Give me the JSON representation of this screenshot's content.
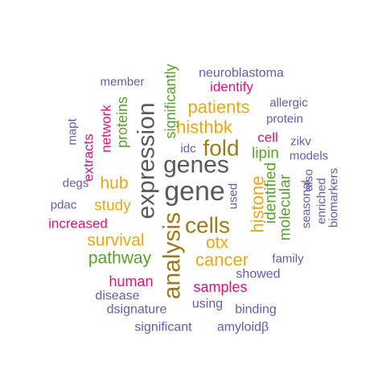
{
  "palette": {
    "grey": "#595959",
    "olive": "#9c7a1a",
    "gold": "#e6a817",
    "green": "#5aa02c",
    "magenta": "#d6157a",
    "purple": "#6a5aa8"
  },
  "words": [
    {
      "text": "gene",
      "color": "grey"
    },
    {
      "text": "expression",
      "color": "grey"
    },
    {
      "text": "genes",
      "color": "grey"
    },
    {
      "text": "analysis",
      "color": "olive"
    },
    {
      "text": "cells",
      "color": "olive"
    },
    {
      "text": "fold",
      "color": "olive"
    },
    {
      "text": "histone",
      "color": "gold"
    },
    {
      "text": "cancer",
      "color": "gold"
    },
    {
      "text": "patients",
      "color": "gold"
    },
    {
      "text": "histhbk",
      "color": "gold"
    },
    {
      "text": "survival",
      "color": "gold"
    },
    {
      "text": "hub",
      "color": "gold"
    },
    {
      "text": "otx",
      "color": "gold"
    },
    {
      "text": "study",
      "color": "gold"
    },
    {
      "text": "pathway",
      "color": "green"
    },
    {
      "text": "identified",
      "color": "green"
    },
    {
      "text": "molecular",
      "color": "green"
    },
    {
      "text": "significantly",
      "color": "green"
    },
    {
      "text": "proteins",
      "color": "green"
    },
    {
      "text": "lipin",
      "color": "green"
    },
    {
      "text": "human",
      "color": "magenta"
    },
    {
      "text": "samples",
      "color": "magenta"
    },
    {
      "text": "increased",
      "color": "magenta"
    },
    {
      "text": "extracts",
      "color": "magenta"
    },
    {
      "text": "network",
      "color": "magenta"
    },
    {
      "text": "identify",
      "color": "magenta"
    },
    {
      "text": "cell",
      "color": "magenta"
    },
    {
      "text": "neuroblastoma",
      "color": "purple"
    },
    {
      "text": "member",
      "color": "purple"
    },
    {
      "text": "allergic",
      "color": "purple"
    },
    {
      "text": "protein",
      "color": "purple"
    },
    {
      "text": "zikv",
      "color": "purple"
    },
    {
      "text": "models",
      "color": "purple"
    },
    {
      "text": "mapt",
      "color": "purple"
    },
    {
      "text": "idc",
      "color": "purple"
    },
    {
      "text": "degs",
      "color": "purple"
    },
    {
      "text": "pdac",
      "color": "purple"
    },
    {
      "text": "used",
      "color": "purple"
    },
    {
      "text": "seasonal",
      "color": "purple"
    },
    {
      "text": "also",
      "color": "purple"
    },
    {
      "text": "enriched",
      "color": "purple"
    },
    {
      "text": "biomarkers",
      "color": "purple"
    },
    {
      "text": "family",
      "color": "purple"
    },
    {
      "text": "showed",
      "color": "purple"
    },
    {
      "text": "disease",
      "color": "purple"
    },
    {
      "text": "using",
      "color": "purple"
    },
    {
      "text": "dsignature",
      "color": "purple"
    },
    {
      "text": "binding",
      "color": "purple"
    },
    {
      "text": "significant",
      "color": "purple"
    },
    {
      "text": "amyloidβ",
      "color": "purple"
    }
  ]
}
